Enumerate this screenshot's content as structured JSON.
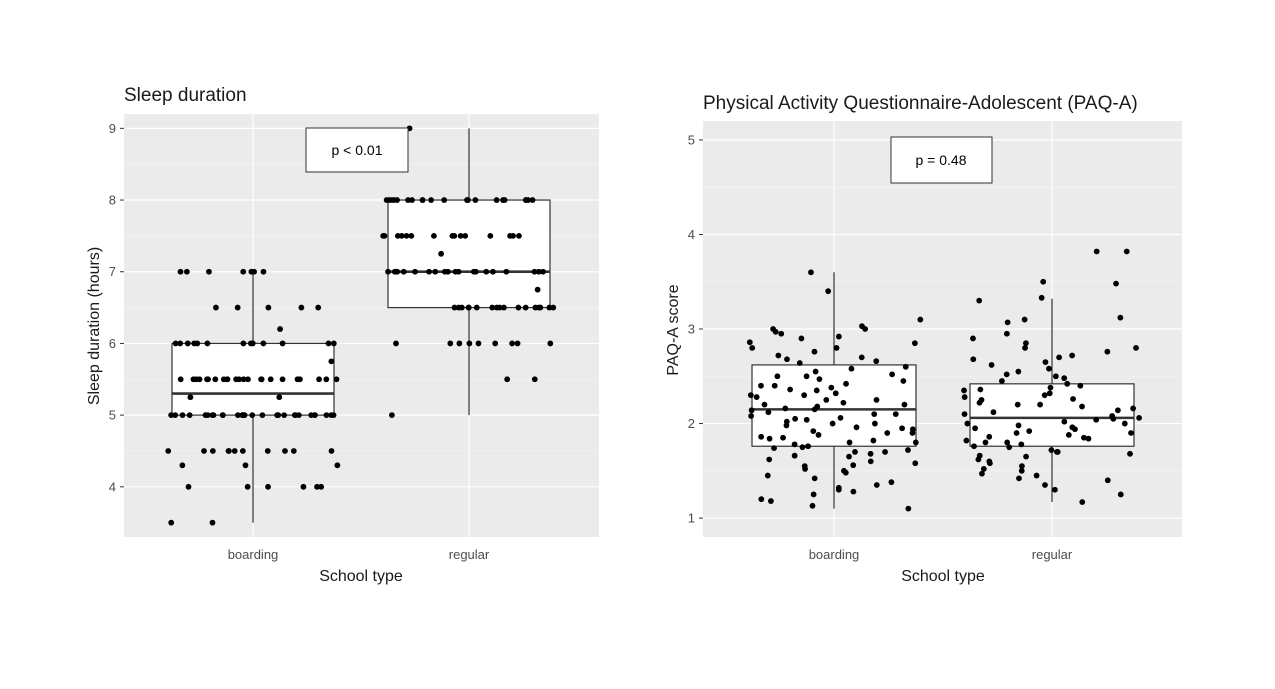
{
  "colors": {
    "panel_bg": "#ebebeb",
    "grid_major": "#ffffff",
    "grid_minor": "#f4f4f4",
    "box_fill": "#ffffff",
    "box_stroke": "#333333",
    "point": "#000000"
  },
  "chart_data": [
    {
      "type": "box",
      "title": "Sleep duration",
      "xlabel": "School type",
      "ylabel": "Sleep duration (hours)",
      "categories": [
        "boarding",
        "regular"
      ],
      "ylim": [
        3.3,
        9.2
      ],
      "yticks": [
        4,
        5,
        6,
        7,
        8,
        9
      ],
      "ytick_labels": [
        "4",
        "5",
        "6",
        "7",
        "8",
        "9"
      ],
      "annotation": "p < 0.01",
      "boxes": [
        {
          "category": "boarding",
          "q1": 5.0,
          "median": 5.3,
          "q3": 6.0,
          "whisker_low": 3.5,
          "whisker_high": 7.0
        },
        {
          "category": "regular",
          "q1": 6.5,
          "median": 7.0,
          "q3": 8.0,
          "whisker_low": 5.0,
          "whisker_high": 9.0
        }
      ],
      "points": [
        {
          "category": "boarding",
          "values": [
            7,
            7,
            7,
            7,
            7,
            7,
            7,
            6.5,
            6.5,
            6.5,
            6.5,
            6.5,
            6.2,
            6,
            6,
            6,
            6,
            6,
            6,
            6,
            6,
            6,
            6,
            6,
            6,
            6,
            5.75,
            5.5,
            5.5,
            5.5,
            5.5,
            5.5,
            5.5,
            5.5,
            5.5,
            5.5,
            5.5,
            5.5,
            5.5,
            5.5,
            5.5,
            5.5,
            5.5,
            5.5,
            5.5,
            5.5,
            5.5,
            5.5,
            5.5,
            5.5,
            5.5,
            5.25,
            5.25,
            5,
            5,
            5,
            5,
            5,
            5,
            5,
            5,
            5,
            5,
            5,
            5,
            5,
            5,
            5,
            5,
            5,
            5,
            5,
            5,
            5,
            5,
            5,
            5,
            5,
            5,
            5,
            5,
            5,
            5,
            4.5,
            4.5,
            4.5,
            4.5,
            4.5,
            4.5,
            4.5,
            4.5,
            4.5,
            4.5,
            4.5,
            4.3,
            4.3,
            4.3,
            4,
            4,
            4,
            4,
            4,
            4,
            3.5,
            3.5
          ]
        },
        {
          "category": "regular",
          "values": [
            9,
            8,
            8,
            8,
            8,
            8,
            8,
            8,
            8,
            8,
            8,
            8,
            8,
            8,
            8,
            8,
            8,
            8,
            8,
            8,
            8,
            8,
            7.5,
            7.5,
            7.5,
            7.5,
            7.5,
            7.5,
            7.5,
            7.5,
            7.5,
            7.5,
            7.5,
            7.5,
            7.5,
            7.5,
            7.5,
            7.25,
            7.0,
            7.0,
            7.0,
            7.0,
            7.0,
            7.0,
            7.0,
            7.0,
            7.0,
            7.0,
            7.0,
            7.0,
            7.0,
            7.0,
            7.0,
            7.0,
            7.0,
            7.0,
            7.0,
            7.0,
            6.75,
            6.5,
            6.5,
            6.5,
            6.5,
            6.5,
            6.5,
            6.5,
            6.5,
            6.5,
            6.5,
            6.5,
            6.5,
            6.5,
            6.5,
            6.5,
            6.5,
            6.5,
            6,
            6,
            6,
            6,
            6,
            6,
            6,
            6,
            6,
            5.5,
            5.5,
            5
          ]
        }
      ]
    },
    {
      "type": "box",
      "title": "Physical Activity Questionnaire-Adolescent (PAQ-A)",
      "xlabel": "School type",
      "ylabel": "PAQ-A score",
      "categories": [
        "boarding",
        "regular"
      ],
      "ylim": [
        0.8,
        5.2
      ],
      "yticks": [
        1,
        2,
        3,
        4,
        5
      ],
      "ytick_labels": [
        "1",
        "2",
        "3",
        "4",
        "5"
      ],
      "annotation": "p = 0.48",
      "boxes": [
        {
          "category": "boarding",
          "q1": 1.76,
          "median": 2.15,
          "q3": 2.62,
          "whisker_low": 1.1,
          "whisker_high": 3.6
        },
        {
          "category": "regular",
          "q1": 1.76,
          "median": 2.06,
          "q3": 2.42,
          "whisker_low": 1.17,
          "whisker_high": 3.32
        }
      ],
      "points": [
        {
          "category": "boarding",
          "values": [
            3.6,
            3.4,
            3.1,
            3.03,
            3.0,
            3.0,
            2.97,
            2.95,
            2.92,
            2.9,
            2.86,
            2.85,
            2.8,
            2.8,
            2.76,
            2.72,
            2.7,
            2.68,
            2.66,
            2.64,
            2.6,
            2.58,
            2.55,
            2.52,
            2.5,
            2.5,
            2.47,
            2.45,
            2.42,
            2.4,
            2.4,
            2.38,
            2.36,
            2.35,
            2.32,
            2.3,
            2.3,
            2.28,
            2.25,
            2.25,
            2.22,
            2.2,
            2.2,
            2.18,
            2.16,
            2.15,
            2.14,
            2.12,
            2.1,
            2.1,
            2.08,
            2.06,
            2.05,
            2.04,
            2.02,
            2.0,
            2.0,
            1.98,
            1.96,
            1.95,
            1.94,
            1.92,
            1.9,
            1.9,
            1.88,
            1.86,
            1.85,
            1.84,
            1.82,
            1.8,
            1.8,
            1.78,
            1.76,
            1.75,
            1.74,
            1.72,
            1.7,
            1.7,
            1.68,
            1.66,
            1.65,
            1.62,
            1.6,
            1.58,
            1.56,
            1.55,
            1.52,
            1.5,
            1.48,
            1.45,
            1.42,
            1.38,
            1.35,
            1.32,
            1.3,
            1.28,
            1.25,
            1.2,
            1.18,
            1.13,
            1.1
          ]
        },
        {
          "category": "regular",
          "values": [
            3.82,
            3.82,
            3.5,
            3.48,
            3.33,
            3.3,
            3.12,
            3.1,
            3.07,
            2.95,
            2.9,
            2.85,
            2.8,
            2.8,
            2.76,
            2.72,
            2.7,
            2.68,
            2.65,
            2.62,
            2.58,
            2.55,
            2.52,
            2.5,
            2.48,
            2.45,
            2.42,
            2.4,
            2.38,
            2.36,
            2.35,
            2.32,
            2.3,
            2.28,
            2.26,
            2.25,
            2.22,
            2.2,
            2.2,
            2.18,
            2.16,
            2.14,
            2.12,
            2.1,
            2.08,
            2.06,
            2.05,
            2.04,
            2.02,
            2.0,
            2.0,
            1.98,
            1.96,
            1.95,
            1.94,
            1.92,
            1.9,
            1.9,
            1.88,
            1.86,
            1.85,
            1.84,
            1.82,
            1.8,
            1.8,
            1.78,
            1.76,
            1.75,
            1.72,
            1.7,
            1.7,
            1.68,
            1.66,
            1.65,
            1.62,
            1.6,
            1.58,
            1.55,
            1.52,
            1.5,
            1.47,
            1.45,
            1.42,
            1.4,
            1.35,
            1.3,
            1.25,
            1.17
          ]
        }
      ]
    }
  ]
}
